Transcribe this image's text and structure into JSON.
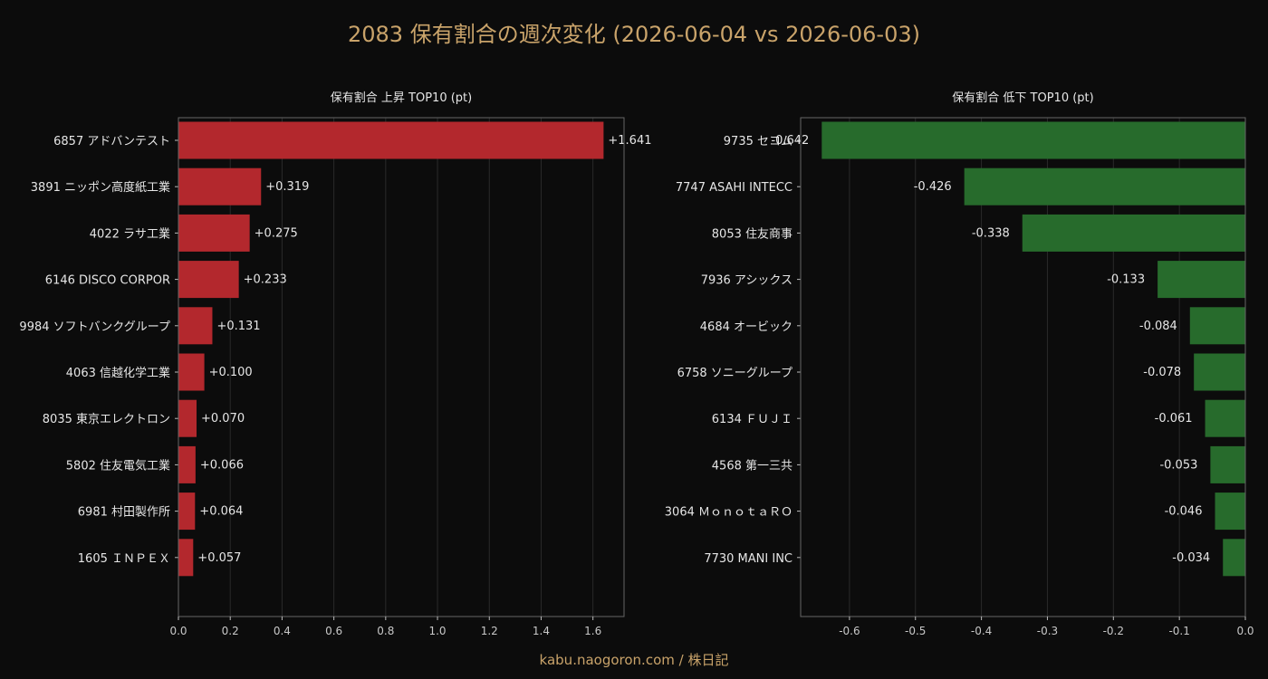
{
  "title": "2083 保有割合の週次変化 (2026-06-04 vs 2026-06-03)",
  "footer": "kabu.naogoron.com / 株日記",
  "colors": {
    "background": "#0c0c0c",
    "increase_bar": "#b3282d",
    "decrease_bar": "#276b2c",
    "title_text": "#c9a36a",
    "axis": "#666666",
    "grid": "#2a2a2a"
  },
  "chart_data": [
    {
      "type": "bar",
      "orientation": "horizontal",
      "title": "保有割合 上昇 TOP10 (pt)",
      "categories": [
        "6857 アドバンテスト",
        "3891 ニッポン高度紙工業",
        "4022 ラサ工業",
        "6146 DISCO CORPOR",
        "9984 ソフトバンクグループ",
        "4063 信越化学工業",
        "8035 東京エレクトロン",
        "5802 住友電気工業",
        "6981 村田製作所",
        "1605 ＩＮＰＥＸ"
      ],
      "values": [
        1.641,
        0.319,
        0.275,
        0.233,
        0.131,
        0.1,
        0.07,
        0.066,
        0.064,
        0.057
      ],
      "value_labels": [
        "+1.641",
        "+0.319",
        "+0.275",
        "+0.233",
        "+0.131",
        "+0.100",
        "+0.070",
        "+0.066",
        "+0.064",
        "+0.057"
      ],
      "xlim": [
        0,
        1.72
      ],
      "xticks": [
        0,
        0.2,
        0.4,
        0.6,
        0.8,
        1.0,
        1.2,
        1.4,
        1.6
      ],
      "xtick_labels": [
        "0.0",
        "0.2",
        "0.4",
        "0.6",
        "0.8",
        "1.0",
        "1.2",
        "1.4",
        "1.6"
      ],
      "grid": "vertical",
      "color": "#b3282d"
    },
    {
      "type": "bar",
      "orientation": "horizontal",
      "title": "保有割合 低下 TOP10 (pt)",
      "categories": [
        "9735 セコム",
        "7747 ASAHI INTECC",
        "8053 住友商事",
        "7936 アシックス",
        "4684 オービック",
        "6758 ソニーグループ",
        "6134 ＦＵＪＩ",
        "4568 第一三共",
        "3064 ＭｏｎｏｔａＲＯ",
        "7730 MANI INC"
      ],
      "values": [
        -0.642,
        -0.426,
        -0.338,
        -0.133,
        -0.084,
        -0.078,
        -0.061,
        -0.053,
        -0.046,
        -0.034
      ],
      "value_labels": [
        "-0.642",
        "-0.426",
        "-0.338",
        "-0.133",
        "-0.084",
        "-0.078",
        "-0.061",
        "-0.053",
        "-0.046",
        "-0.034"
      ],
      "xlim": [
        -0.674,
        0
      ],
      "xticks": [
        -0.6,
        -0.5,
        -0.4,
        -0.3,
        -0.2,
        -0.1,
        0.0
      ],
      "xtick_labels": [
        "-0.6",
        "-0.5",
        "-0.4",
        "-0.3",
        "-0.2",
        "-0.1",
        "0.0"
      ],
      "grid": "vertical",
      "color": "#276b2c"
    }
  ]
}
